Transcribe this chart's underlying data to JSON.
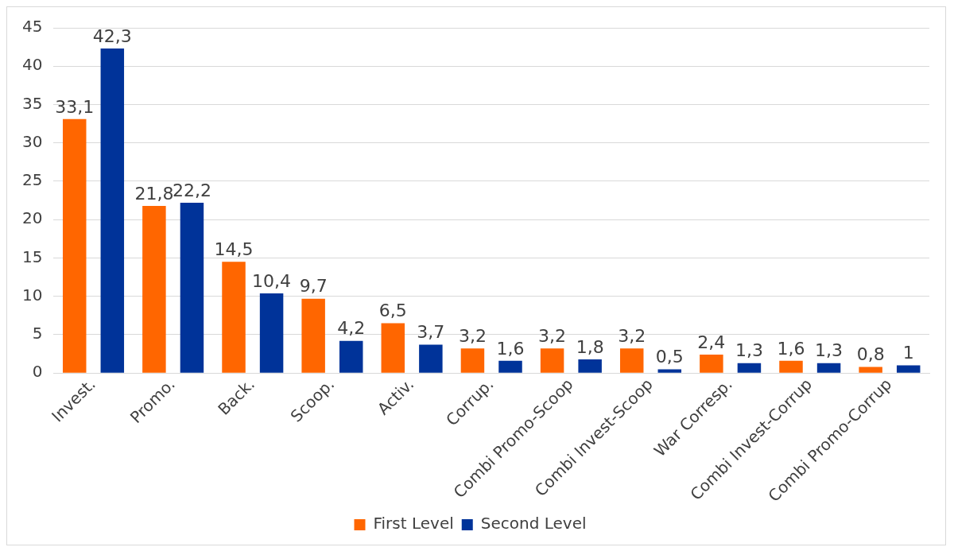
{
  "chart_data": {
    "type": "bar",
    "categories": [
      "Invest.",
      "Promo.",
      "Back.",
      "Scoop.",
      "Activ.",
      "Corrup.",
      "Combi Promo-Scoop",
      "Combi Invest-Scoop",
      "War Corresp.",
      "Combi Invest-Corrup",
      "Combi Promo-Corrup"
    ],
    "series": [
      {
        "name": "First Level",
        "color": "#ff6600",
        "values": [
          33.1,
          21.8,
          14.5,
          9.7,
          6.5,
          3.2,
          3.2,
          3.2,
          2.4,
          1.6,
          0.8
        ],
        "value_labels": [
          "33,1",
          "21,8",
          "14,5",
          "9,7",
          "6,5",
          "3,2",
          "3,2",
          "3,2",
          "2,4",
          "1,6",
          "0,8"
        ]
      },
      {
        "name": "Second Level",
        "color": "#003399",
        "values": [
          42.3,
          22.2,
          10.4,
          4.2,
          3.7,
          1.6,
          1.8,
          0.5,
          1.3,
          1.3,
          1
        ],
        "value_labels": [
          "42,3",
          "22,2",
          "10,4",
          "4,2",
          "3,7",
          "1,6",
          "1,8",
          "0,5",
          "1,3",
          "1,3",
          "1"
        ]
      }
    ],
    "ylim": [
      0,
      45
    ],
    "yticks": [
      0,
      5,
      10,
      15,
      20,
      25,
      30,
      35,
      40,
      45
    ],
    "grid": "y",
    "legend": "bottom"
  }
}
